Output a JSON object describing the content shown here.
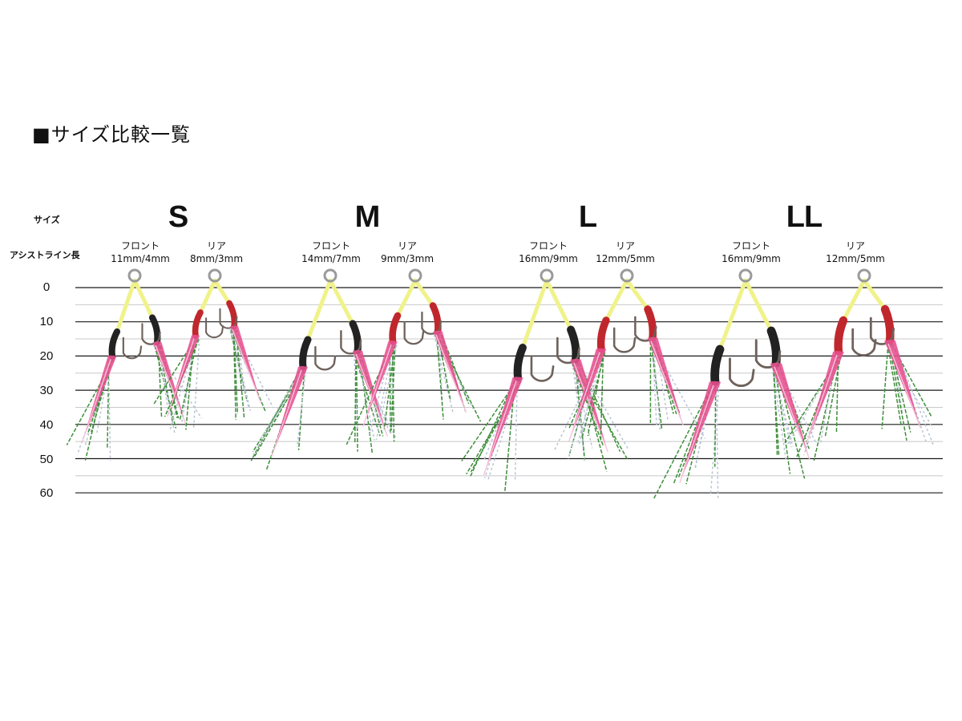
{
  "title": "■サイズ比較一覧",
  "row_labels": {
    "size": "サイズ",
    "assist_line_length": "アシストライン長"
  },
  "scale_ticks": [
    "0",
    "10",
    "20",
    "30",
    "40",
    "50",
    "60"
  ],
  "sizes": [
    {
      "name": "S",
      "front": {
        "label": "フロント",
        "spec": "11mm/4mm"
      },
      "rear": {
        "label": "リア",
        "spec": "8mm/3mm"
      }
    },
    {
      "name": "M",
      "front": {
        "label": "フロント",
        "spec": "14mm/7mm"
      },
      "rear": {
        "label": "リア",
        "spec": "9mm/3mm"
      }
    },
    {
      "name": "L",
      "front": {
        "label": "フロント",
        "spec": "16mm/9mm"
      },
      "rear": {
        "label": "リア",
        "spec": "12mm/5mm"
      }
    },
    {
      "name": "LL",
      "front": {
        "label": "フロント",
        "spec": "16mm/9mm"
      },
      "rear": {
        "label": "リア",
        "spec": "12mm/5mm"
      }
    }
  ],
  "colors": {
    "scale_line": "#1a1a1a",
    "minor_line": "#c8c8c8",
    "assist_line": "#f0f28a",
    "tube_black": "#222222",
    "tube_red": "#c0272d",
    "skirt_pink": "#e8508f",
    "flash_green": "#3e8f3a",
    "flash_silver": "#b9c4d2",
    "hook_metal": "#6e625c",
    "ring_metal": "#9a9a9a"
  }
}
